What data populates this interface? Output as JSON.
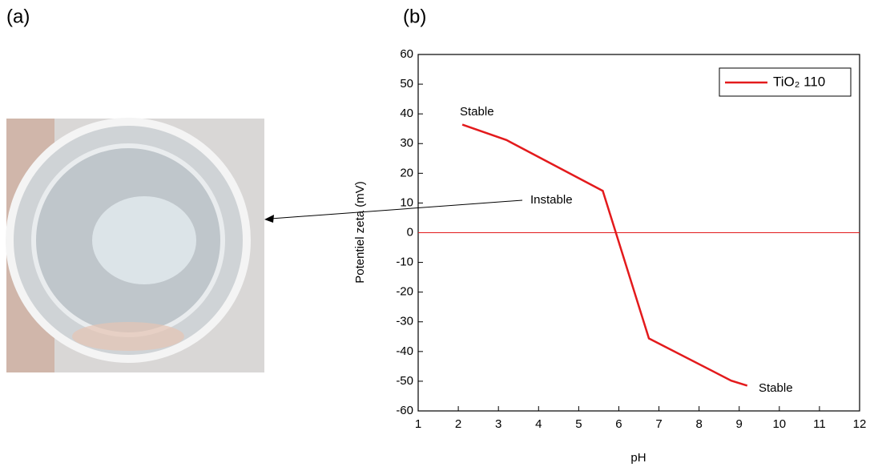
{
  "panel_labels": [
    "(a)",
    "(b)"
  ],
  "chart_data": {
    "type": "line",
    "x_label": "pH",
    "y_label": "Potentiel zeta (mV)",
    "x": [
      2.1,
      3.2,
      5.6,
      6.75,
      8.8,
      9.2
    ],
    "series": [
      {
        "name": "TiO₂ 110",
        "color": "#e31a1c",
        "values": [
          36.4,
          31.2,
          14.1,
          -35.6,
          -49.8,
          -51.5
        ]
      }
    ],
    "xlim": [
      1,
      12
    ],
    "xticks": [
      1,
      2,
      3,
      4,
      5,
      6,
      7,
      8,
      9,
      10,
      11,
      12
    ],
    "ylim": [
      -60,
      60
    ],
    "yticks": [
      -60,
      -50,
      -40,
      -30,
      -20,
      -10,
      0,
      10,
      20,
      30,
      40,
      50,
      60
    ],
    "reference_line": {
      "y": 0,
      "color": "#e31a1c"
    },
    "legend": "top-right",
    "annotations": [
      "Stable",
      "Instable",
      "Stable"
    ]
  }
}
